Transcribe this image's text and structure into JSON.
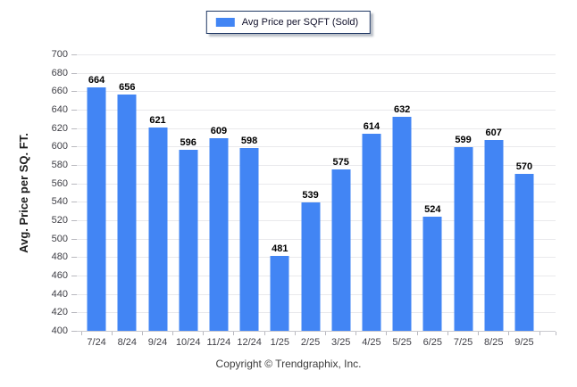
{
  "legend": {
    "label": "Avg Price per SQFT (Sold)",
    "swatch_color": "#4285F4"
  },
  "yaxis": {
    "label": "Avg. Price per SQ. FT."
  },
  "footer": {
    "copyright": "Copyright © Trendgraphix, Inc."
  },
  "colors": {
    "bar": "#4285F4",
    "grid": "#e9e9ec",
    "axis": "#c9c9ce",
    "tick": "#b9b9bf",
    "tick_label": "#3f3f46",
    "value_label": "#000000",
    "legend_border": "#1f3864"
  },
  "chart_data": {
    "type": "bar",
    "title": "",
    "categories": [
      "7/24",
      "8/24",
      "9/24",
      "10/24",
      "11/24",
      "12/24",
      "1/25",
      "2/25",
      "3/25",
      "4/25",
      "5/25",
      "6/25",
      "7/25",
      "8/25",
      "9/25"
    ],
    "values": [
      664,
      656,
      621,
      596,
      609,
      598,
      481,
      539,
      575,
      614,
      632,
      524,
      599,
      607,
      570
    ],
    "ylabel": "Avg. Price per SQ. FT.",
    "xlabel": "",
    "ylim": [
      400,
      700
    ],
    "ytick_step": 20,
    "grid": true,
    "value_labels": true,
    "legend_entries": [
      "Avg Price per SQFT (Sold)"
    ],
    "legend_position": "top-center"
  }
}
